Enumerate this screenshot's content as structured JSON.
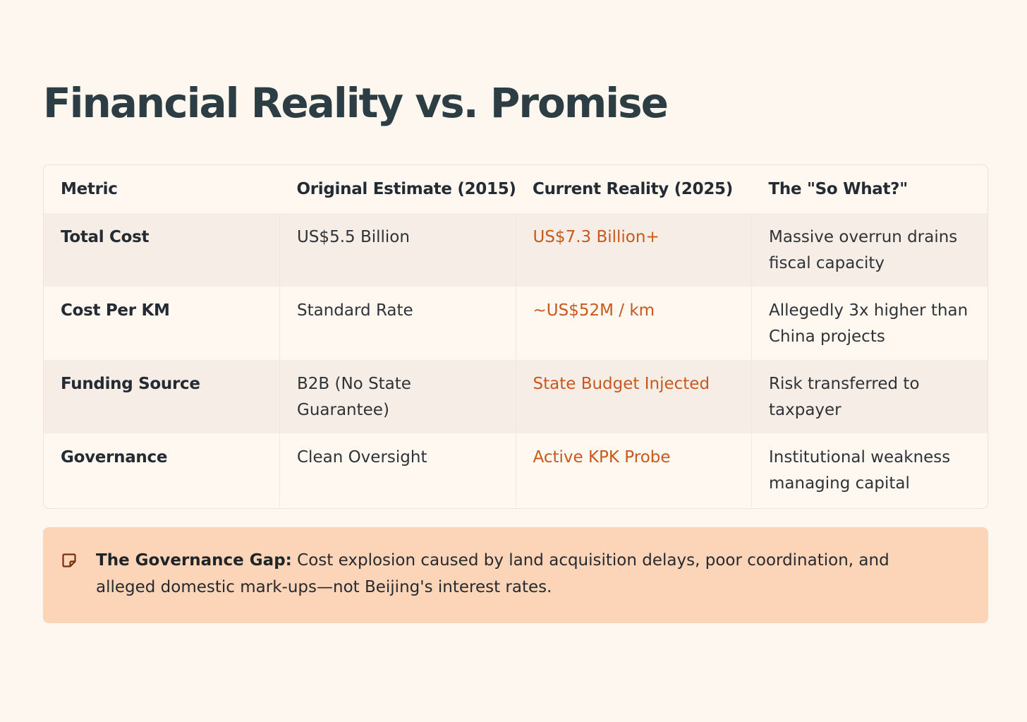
{
  "page": {
    "title": "Financial Reality vs. Promise"
  },
  "table": {
    "headers": {
      "metric": "Metric",
      "original": "Original Estimate (2015)",
      "reality": "Current Reality (2025)",
      "so_what": "The \"So What?\""
    },
    "rows": [
      {
        "metric": "Total Cost",
        "original": "US$5.5 Billion",
        "reality": "US$7.3 Billion+",
        "so_what": "Massive overrun drains fiscal capacity"
      },
      {
        "metric": "Cost Per KM",
        "original": "Standard Rate",
        "reality": "~US$52M / km",
        "so_what": "Allegedly 3x higher than China projects"
      },
      {
        "metric": "Funding Source",
        "original": "B2B (No State Guarantee)",
        "reality": "State Budget Injected",
        "so_what": "Risk transferred to taxpayer"
      },
      {
        "metric": "Governance",
        "original": "Clean Oversight",
        "reality": "Active KPK Probe",
        "so_what": "Institutional weakness managing capital"
      }
    ]
  },
  "callout": {
    "icon": "note-icon",
    "lead": "The Governance Gap:",
    "body": " Cost explosion caused by land acquisition delays, poor coordination, and alleged domestic mark-ups—not Beijing's interest rates."
  },
  "colors": {
    "background": "#fef7f0",
    "accent_text": "#c8581c",
    "callout_bg": "#fcd4b8",
    "stripe": "#f6eee6"
  }
}
